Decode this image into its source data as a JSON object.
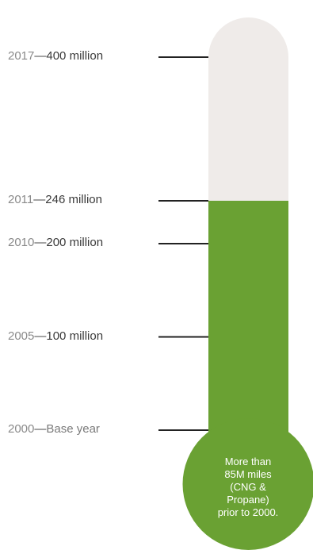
{
  "chart_data": {
    "type": "thermometer",
    "unit": "million",
    "ylim": [
      0,
      400
    ],
    "fill_value": 246,
    "colors": {
      "fill": "#6aa133",
      "empty": "#efebe9",
      "tick": "#222222"
    },
    "points": [
      {
        "year": "2017",
        "dash": "—",
        "label": "400 million",
        "value": 400
      },
      {
        "year": "2011",
        "dash": "—",
        "label": "246 million",
        "value": 246
      },
      {
        "year": "2010",
        "dash": "—",
        "label": "200 million",
        "value": 200
      },
      {
        "year": "2005",
        "dash": "—",
        "label": "100 million",
        "value": 100
      },
      {
        "year": "2000",
        "dash": "—",
        "label": "Base year",
        "value": 0
      }
    ],
    "bulb_text": [
      "More than",
      "85M miles",
      "(CNG & Propane)",
      "prior to 2000."
    ]
  }
}
